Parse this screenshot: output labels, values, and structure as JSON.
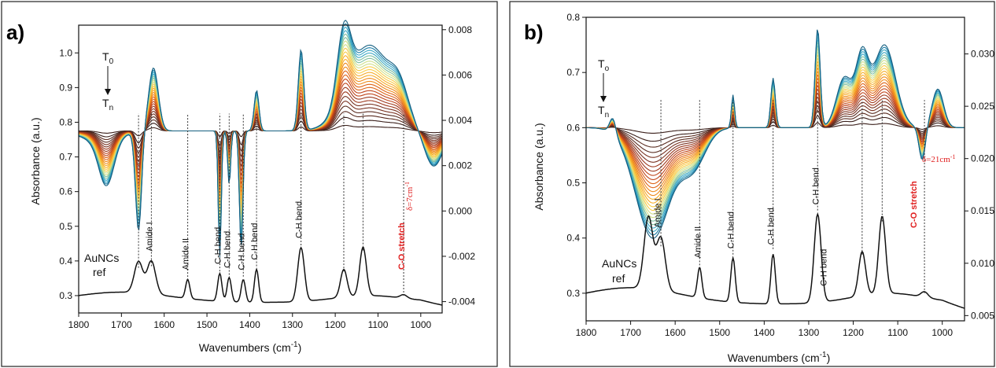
{
  "chart_data": [
    {
      "panel": "a)",
      "type": "line",
      "xlabel": "Wavenumbers (cm",
      "xlabel_sup": "-1",
      "xlabel_close": ")",
      "ylabel": "Absorbance (a.u.)",
      "xlim": [
        1800,
        950
      ],
      "ylim_left": [
        0.25,
        1.08
      ],
      "ylim_right": [
        -0.0045,
        0.0082
      ],
      "x_ticks": [
        1800,
        1700,
        1600,
        1500,
        1400,
        1300,
        1200,
        1100,
        1000
      ],
      "y_ticks_left": [
        0.3,
        0.4,
        0.5,
        0.6,
        0.7,
        0.8,
        0.9,
        1.0
      ],
      "y_tick_labels_left": [
        "0.3",
        "0.4",
        "0.5",
        "0.6",
        "0.7",
        "0.8",
        "0.9",
        "1.0"
      ],
      "y_ticks_right": [
        -0.004,
        -0.002,
        0.0,
        0.002,
        0.004,
        0.006,
        0.008
      ],
      "y_tick_labels_right": [
        "-0.004",
        "-0.002",
        "0.000",
        "0.002",
        "0.004",
        "0.006",
        "0.008"
      ],
      "t0_label": "T",
      "t0_sub": "0",
      "tn_label": "T",
      "tn_sub": "n",
      "ref_label_1": "AuNCs",
      "ref_label_2": "ref",
      "band_labels": [
        {
          "x": 1630,
          "text": "Amide I"
        },
        {
          "x": 1545,
          "text": "Amide II"
        },
        {
          "x": 1470,
          "text": "C-H bend"
        },
        {
          "x": 1448,
          "text": "C-H bend"
        },
        {
          "x": 1415,
          "text": "C-H bend"
        },
        {
          "x": 1384,
          "text": "C-H bend"
        },
        {
          "x": 1280,
          "text": "C-H bend"
        }
      ],
      "co_stretch": "C-O stretch",
      "delta": "δ=7cm",
      "delta_sup": "-1",
      "reference_peaks": [
        {
          "x": 1660,
          "y": 0.38
        },
        {
          "x": 1630,
          "y": 0.385
        },
        {
          "x": 1545,
          "y": 0.345
        },
        {
          "x": 1470,
          "y": 0.37
        },
        {
          "x": 1448,
          "y": 0.36
        },
        {
          "x": 1415,
          "y": 0.355
        },
        {
          "x": 1384,
          "y": 0.385
        },
        {
          "x": 1280,
          "y": 0.445
        },
        {
          "x": 1180,
          "y": 0.37
        },
        {
          "x": 1135,
          "y": 0.43
        },
        {
          "x": 1040,
          "y": 0.3
        }
      ]
    },
    {
      "panel": "b)",
      "type": "line",
      "xlabel": "Wavenumbers (cm",
      "xlabel_sup": "-1",
      "xlabel_close": ")",
      "ylabel": "Absorbance (a.u.)",
      "xlim": [
        1800,
        950
      ],
      "ylim_left": [
        0.25,
        0.8
      ],
      "ylim_right": [
        0.0045,
        0.0335
      ],
      "x_ticks": [
        1800,
        1700,
        1600,
        1500,
        1400,
        1300,
        1200,
        1100,
        1000
      ],
      "y_ticks_left": [
        0.3,
        0.4,
        0.5,
        0.6,
        0.7,
        0.8
      ],
      "y_tick_labels_left": [
        "0.3",
        "0.4",
        "0.5",
        "0.6",
        "0.7",
        "0.8"
      ],
      "y_ticks_right": [
        0.005,
        0.01,
        0.015,
        0.02,
        0.025,
        0.03
      ],
      "y_tick_labels_right": [
        "0.005",
        "0.010",
        "0.015",
        "0.020",
        "0.025",
        "0.030"
      ],
      "t0_label": "T",
      "t0_sub": "o",
      "tn_label": "T",
      "tn_sub": "n",
      "ref_label_1": "AuNCs",
      "ref_label_2": "ref",
      "band_labels": [
        {
          "x": 1635,
          "text": "Amide I"
        },
        {
          "x": 1545,
          "text": "Amide II"
        },
        {
          "x": 1470,
          "text": "C-H bend"
        },
        {
          "x": 1380,
          "text": "C-H bend"
        },
        {
          "x": 1280,
          "text": "C-H bend"
        },
        {
          "x": 1262,
          "text": "C-H bend"
        }
      ],
      "co_stretch": "C-O stretch",
      "delta": "δ=21cm",
      "delta_sup": "-1",
      "reference_peaks": [
        {
          "x": 1660,
          "y": 0.42
        },
        {
          "x": 1632,
          "y": 0.385
        },
        {
          "x": 1545,
          "y": 0.345
        },
        {
          "x": 1470,
          "y": 0.37
        },
        {
          "x": 1380,
          "y": 0.38
        },
        {
          "x": 1280,
          "y": 0.45
        },
        {
          "x": 1180,
          "y": 0.37
        },
        {
          "x": 1135,
          "y": 0.43
        },
        {
          "x": 1040,
          "y": 0.3
        }
      ]
    }
  ],
  "colors": {
    "gradient": [
      "#3a1f1a",
      "#5a2c20",
      "#7a3322",
      "#9e3a1f",
      "#c0451b",
      "#de6418",
      "#ef8a1a",
      "#f6ad2a",
      "#f8cc48",
      "#cfe08a",
      "#7fc0a0",
      "#3aa7c4",
      "#1b7fa8",
      "#155f80"
    ],
    "reference": "#111111",
    "annotation_red": "#e02020"
  }
}
